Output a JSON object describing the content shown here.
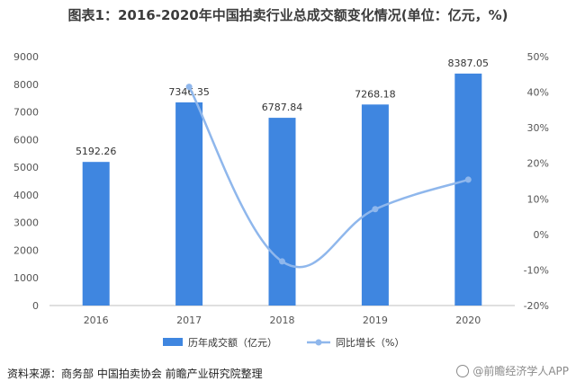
{
  "title": "图表1：2016-2020年中国拍卖行业总成交额变化情况(单位：亿元，%)",
  "source": "资料来源：商务部 中国拍卖协会 前瞻产业研究院整理",
  "credit": "@前瞻经济学人APP",
  "colors": {
    "bar": "#3f86e0",
    "line": "#8fb7ec",
    "axis": "#bfbfbf"
  },
  "chart_data": {
    "type": "bar",
    "categories": [
      "2016",
      "2017",
      "2018",
      "2019",
      "2020"
    ],
    "series": [
      {
        "name": "历年成交额（亿元）",
        "type": "bar",
        "axis": "left",
        "values": [
          5192.26,
          7346.35,
          6787.84,
          7268.18,
          8387.05
        ],
        "labels": [
          "5192.26",
          "7346.35",
          "6787.84",
          "7268.18",
          "8387.05"
        ]
      },
      {
        "name": "同比增长（%）",
        "type": "line",
        "axis": "right",
        "values": [
          null,
          41.5,
          -7.6,
          7.1,
          15.4
        ]
      }
    ],
    "y_left": {
      "lim": [
        0,
        9000
      ],
      "ticks": [
        0,
        1000,
        2000,
        3000,
        4000,
        5000,
        6000,
        7000,
        8000,
        9000
      ],
      "tick_labels": [
        "0",
        "1000",
        "2000",
        "3000",
        "4000",
        "5000",
        "6000",
        "7000",
        "8000",
        "9000"
      ]
    },
    "y_right": {
      "lim": [
        -20,
        50
      ],
      "ticks": [
        -20,
        -10,
        0,
        10,
        20,
        30,
        40,
        50
      ],
      "tick_labels": [
        "-20%",
        "-10%",
        "0%",
        "10%",
        "20%",
        "30%",
        "40%",
        "50%"
      ]
    },
    "grid": false,
    "legend": "bottom"
  }
}
